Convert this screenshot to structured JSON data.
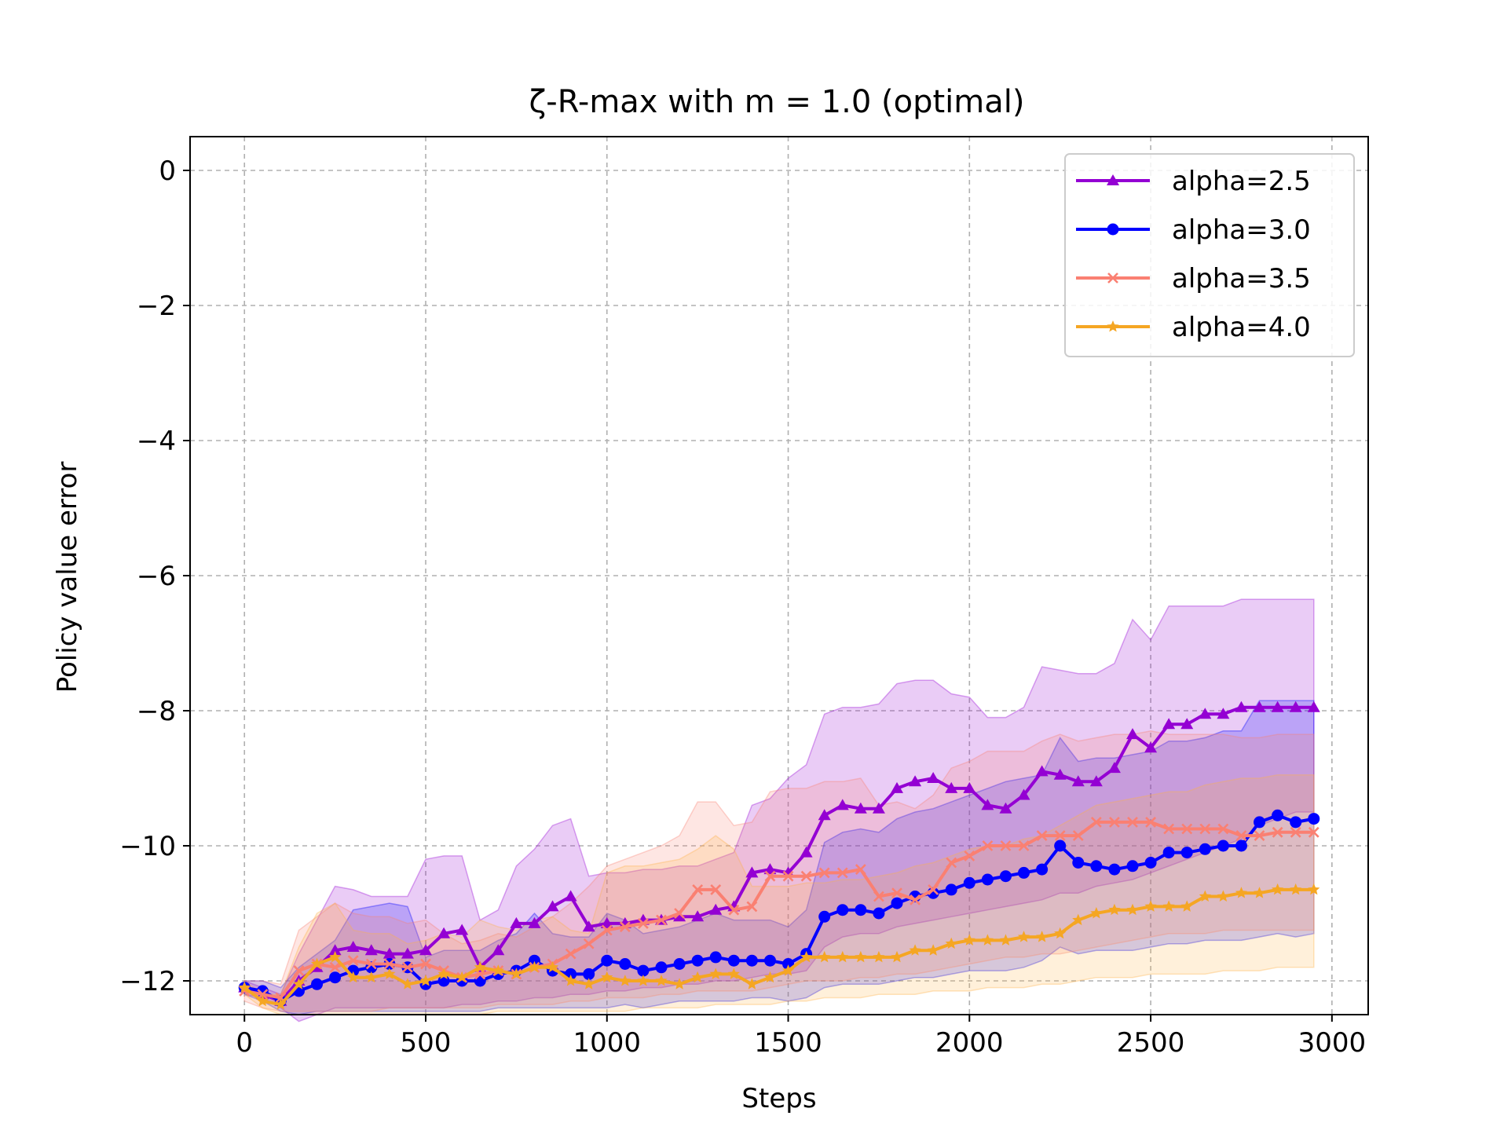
{
  "chart_data": {
    "type": "line",
    "title": "ζ-R-max with m = 1.0 (optimal)",
    "xlabel": "Steps",
    "ylabel": "Policy value error",
    "xlim": [
      -150,
      3100
    ],
    "ylim": [
      -12.5,
      0.5
    ],
    "xticks": [
      0,
      500,
      1000,
      1500,
      2000,
      2500,
      3000
    ],
    "xtick_labels": [
      "0",
      "500",
      "1000",
      "1500",
      "2000",
      "2500",
      "3000"
    ],
    "yticks": [
      0,
      -2,
      -4,
      -6,
      -8,
      -10,
      -12
    ],
    "ytick_labels": [
      "0",
      "−2",
      "−4",
      "−6",
      "−8",
      "−10",
      "−12"
    ],
    "grid": true,
    "legend_position": "top-right",
    "x": [
      0,
      50,
      100,
      150,
      200,
      250,
      300,
      350,
      400,
      450,
      500,
      550,
      600,
      650,
      700,
      750,
      800,
      850,
      900,
      950,
      1000,
      1050,
      1100,
      1150,
      1200,
      1250,
      1300,
      1350,
      1400,
      1450,
      1500,
      1550,
      1600,
      1650,
      1700,
      1750,
      1800,
      1850,
      1900,
      1950,
      2000,
      2050,
      2100,
      2150,
      2200,
      2250,
      2300,
      2350,
      2400,
      2450,
      2500,
      2550,
      2600,
      2650,
      2700,
      2750,
      2800,
      2850,
      2900,
      2950
    ],
    "series": [
      {
        "name": "alpha=2.5",
        "color": "#9400D3",
        "fill_color": "#9400D3",
        "marker": "triangle",
        "values": [
          -12.1,
          -12.2,
          -12.3,
          -12.0,
          -11.8,
          -11.55,
          -11.5,
          -11.55,
          -11.6,
          -11.6,
          -11.55,
          -11.3,
          -11.25,
          -11.8,
          -11.55,
          -11.15,
          -11.15,
          -10.9,
          -10.75,
          -11.2,
          -11.15,
          -11.15,
          -11.1,
          -11.1,
          -11.05,
          -11.05,
          -10.95,
          -10.9,
          -10.4,
          -10.35,
          -10.4,
          -10.1,
          -9.55,
          -9.4,
          -9.45,
          -9.45,
          -9.15,
          -9.05,
          -9.0,
          -9.15,
          -9.15,
          -9.4,
          -9.45,
          -9.25,
          -8.9,
          -8.95,
          -9.05,
          -9.05,
          -8.85,
          -8.35,
          -8.55,
          -8.2,
          -8.2,
          -8.05,
          -8.05,
          -7.95,
          -7.95,
          -7.95,
          -7.95,
          -7.95
        ],
        "lower": [
          -12.2,
          -12.25,
          -12.4,
          -12.6,
          -12.5,
          -12.4,
          -12.4,
          -12.4,
          -12.4,
          -12.4,
          -12.4,
          -12.4,
          -12.35,
          -12.35,
          -12.3,
          -12.3,
          -12.25,
          -12.25,
          -12.2,
          -12.2,
          -12.15,
          -12.15,
          -12.1,
          -12.1,
          -12.05,
          -12.05,
          -12.0,
          -12.0,
          -11.95,
          -11.9,
          -11.9,
          -11.85,
          -11.5,
          -11.35,
          -11.3,
          -11.3,
          -11.2,
          -11.15,
          -11.1,
          -11.05,
          -11.0,
          -10.95,
          -10.9,
          -10.85,
          -10.8,
          -10.7,
          -10.7,
          -10.6,
          -10.55,
          -10.5,
          -10.4,
          -10.3,
          -10.2,
          -10.1,
          -10.0,
          -9.9,
          -9.7,
          -9.6,
          -9.5,
          -9.5
        ],
        "upper": [
          -12.0,
          -12.1,
          -12.2,
          -11.6,
          -11.1,
          -10.6,
          -10.65,
          -10.75,
          -10.75,
          -10.75,
          -10.2,
          -10.15,
          -10.15,
          -11.1,
          -10.95,
          -10.3,
          -10.05,
          -9.7,
          -9.6,
          -10.45,
          -10.4,
          -10.4,
          -10.35,
          -10.35,
          -10.3,
          -10.3,
          -10.2,
          -10.1,
          -9.4,
          -9.3,
          -9.0,
          -8.8,
          -8.05,
          -7.95,
          -7.95,
          -7.9,
          -7.6,
          -7.55,
          -7.55,
          -7.75,
          -7.8,
          -8.1,
          -8.1,
          -7.95,
          -7.35,
          -7.4,
          -7.45,
          -7.45,
          -7.3,
          -6.65,
          -6.95,
          -6.45,
          -6.45,
          -6.45,
          -6.45,
          -6.35,
          -6.35,
          -6.35,
          -6.35,
          -6.35
        ]
      },
      {
        "name": "alpha=3.0",
        "color": "#0000FF",
        "fill_color": "#0000FF",
        "marker": "circle",
        "values": [
          -12.1,
          -12.15,
          -12.3,
          -12.15,
          -12.05,
          -11.95,
          -11.85,
          -11.8,
          -11.75,
          -11.8,
          -12.05,
          -12.0,
          -12.0,
          -12.0,
          -11.9,
          -11.85,
          -11.7,
          -11.85,
          -11.9,
          -11.9,
          -11.7,
          -11.75,
          -11.85,
          -11.8,
          -11.75,
          -11.7,
          -11.65,
          -11.7,
          -11.7,
          -11.7,
          -11.75,
          -11.6,
          -11.05,
          -10.95,
          -10.95,
          -11.0,
          -10.85,
          -10.75,
          -10.7,
          -10.65,
          -10.55,
          -10.5,
          -10.45,
          -10.4,
          -10.35,
          -10.0,
          -10.25,
          -10.3,
          -10.35,
          -10.3,
          -10.25,
          -10.1,
          -10.1,
          -10.05,
          -10.0,
          -10.0,
          -9.65,
          -9.55,
          -9.65,
          -9.6
        ],
        "lower": [
          -12.2,
          -12.3,
          -12.45,
          -12.5,
          -12.45,
          -12.45,
          -12.45,
          -12.45,
          -12.45,
          -12.45,
          -12.45,
          -12.45,
          -12.45,
          -12.45,
          -12.4,
          -12.4,
          -12.4,
          -12.4,
          -12.4,
          -12.4,
          -12.4,
          -12.35,
          -12.4,
          -12.35,
          -12.3,
          -12.3,
          -12.3,
          -12.3,
          -12.25,
          -12.25,
          -12.3,
          -12.25,
          -12.1,
          -12.05,
          -12.05,
          -12.05,
          -12.0,
          -11.95,
          -11.95,
          -11.9,
          -11.85,
          -11.85,
          -11.85,
          -11.8,
          -11.7,
          -11.5,
          -11.6,
          -11.55,
          -11.55,
          -11.55,
          -11.5,
          -11.45,
          -11.45,
          -11.4,
          -11.4,
          -11.4,
          -11.35,
          -11.3,
          -11.35,
          -11.3
        ],
        "upper": [
          -12.0,
          -12.0,
          -12.1,
          -11.8,
          -11.6,
          -11.4,
          -10.95,
          -10.9,
          -10.85,
          -10.9,
          -11.65,
          -11.55,
          -11.55,
          -11.55,
          -11.4,
          -11.3,
          -11.0,
          -11.3,
          -11.35,
          -11.35,
          -11.0,
          -11.1,
          -11.3,
          -11.25,
          -11.2,
          -11.1,
          -11.0,
          -11.1,
          -11.1,
          -11.1,
          -11.2,
          -10.95,
          -9.95,
          -9.8,
          -9.75,
          -9.8,
          -9.6,
          -9.5,
          -9.45,
          -9.35,
          -9.25,
          -9.15,
          -9.05,
          -9.0,
          -8.95,
          -8.4,
          -8.75,
          -8.7,
          -8.7,
          -8.65,
          -8.6,
          -8.45,
          -8.45,
          -8.4,
          -8.3,
          -8.3,
          -7.85,
          -7.85,
          -7.85,
          -7.85
        ]
      },
      {
        "name": "alpha=3.5",
        "color": "#FA8072",
        "fill_color": "#FA8072",
        "marker": "x",
        "values": [
          -12.15,
          -12.2,
          -12.25,
          -11.85,
          -11.75,
          -11.8,
          -11.7,
          -11.75,
          -11.75,
          -11.8,
          -11.75,
          -11.85,
          -11.95,
          -11.9,
          -11.85,
          -11.9,
          -11.8,
          -11.75,
          -11.6,
          -11.45,
          -11.25,
          -11.2,
          -11.15,
          -11.1,
          -11.0,
          -10.65,
          -10.65,
          -10.95,
          -10.9,
          -10.45,
          -10.45,
          -10.45,
          -10.4,
          -10.4,
          -10.35,
          -10.75,
          -10.7,
          -10.8,
          -10.65,
          -10.25,
          -10.15,
          -10.0,
          -10.0,
          -10.0,
          -9.85,
          -9.85,
          -9.85,
          -9.65,
          -9.65,
          -9.65,
          -9.65,
          -9.75,
          -9.75,
          -9.75,
          -9.75,
          -9.85,
          -9.85,
          -9.8,
          -9.8,
          -9.8
        ],
        "lower": [
          -12.3,
          -12.4,
          -12.45,
          -12.45,
          -12.45,
          -12.45,
          -12.45,
          -12.45,
          -12.4,
          -12.4,
          -12.4,
          -12.4,
          -12.4,
          -12.4,
          -12.35,
          -12.35,
          -12.35,
          -12.35,
          -12.3,
          -12.3,
          -12.25,
          -12.25,
          -12.25,
          -12.2,
          -12.2,
          -12.15,
          -12.15,
          -12.15,
          -12.15,
          -12.1,
          -12.05,
          -12.0,
          -12.0,
          -12.0,
          -11.95,
          -11.95,
          -11.9,
          -11.9,
          -11.85,
          -11.8,
          -11.75,
          -11.7,
          -11.65,
          -11.65,
          -11.6,
          -11.6,
          -11.55,
          -11.5,
          -11.45,
          -11.4,
          -11.35,
          -11.3,
          -11.3,
          -11.3,
          -11.25,
          -11.25,
          -11.25,
          -11.25,
          -11.25,
          -11.25
        ],
        "upper": [
          -12.0,
          -12.0,
          -12.05,
          -11.25,
          -11.05,
          -10.85,
          -11.0,
          -11.05,
          -11.05,
          -11.15,
          -11.1,
          -11.3,
          -11.45,
          -11.4,
          -11.3,
          -11.35,
          -11.2,
          -11.05,
          -10.85,
          -10.6,
          -10.3,
          -10.2,
          -10.1,
          -10.0,
          -9.85,
          -9.35,
          -9.35,
          -9.7,
          -9.65,
          -9.2,
          -9.15,
          -9.15,
          -9.05,
          -9.05,
          -9.0,
          -9.4,
          -9.35,
          -9.45,
          -9.25,
          -8.85,
          -8.75,
          -8.6,
          -8.6,
          -8.6,
          -8.45,
          -8.35,
          -8.45,
          -8.4,
          -8.35,
          -8.35,
          -8.3,
          -8.35,
          -8.35,
          -8.35,
          -8.35,
          -8.4,
          -8.4,
          -8.35,
          -8.35,
          -8.35
        ]
      },
      {
        "name": "alpha=4.0",
        "color": "#F5A623",
        "fill_color": "#FFB347",
        "marker": "star",
        "values": [
          -12.1,
          -12.3,
          -12.35,
          -12.05,
          -11.75,
          -11.65,
          -11.95,
          -11.95,
          -11.9,
          -12.05,
          -12.0,
          -11.9,
          -11.95,
          -11.8,
          -11.85,
          -11.9,
          -11.8,
          -11.8,
          -12.0,
          -12.05,
          -11.95,
          -12.0,
          -12.0,
          -12.0,
          -12.05,
          -11.95,
          -11.9,
          -11.9,
          -12.05,
          -11.95,
          -11.85,
          -11.65,
          -11.65,
          -11.65,
          -11.65,
          -11.65,
          -11.65,
          -11.55,
          -11.55,
          -11.45,
          -11.4,
          -11.4,
          -11.4,
          -11.35,
          -11.35,
          -11.3,
          -11.1,
          -11.0,
          -10.95,
          -10.95,
          -10.9,
          -10.9,
          -10.9,
          -10.75,
          -10.75,
          -10.7,
          -10.7,
          -10.65,
          -10.65,
          -10.65
        ],
        "lower": [
          -12.2,
          -12.4,
          -12.5,
          -12.5,
          -12.5,
          -12.5,
          -12.5,
          -12.5,
          -12.5,
          -12.5,
          -12.5,
          -12.5,
          -12.5,
          -12.5,
          -12.45,
          -12.45,
          -12.45,
          -12.45,
          -12.45,
          -12.45,
          -12.45,
          -12.45,
          -12.4,
          -12.4,
          -12.4,
          -12.4,
          -12.35,
          -12.35,
          -12.35,
          -12.35,
          -12.3,
          -12.3,
          -12.25,
          -12.25,
          -12.25,
          -12.2,
          -12.2,
          -12.2,
          -12.15,
          -12.15,
          -12.15,
          -12.1,
          -12.1,
          -12.1,
          -12.05,
          -12.05,
          -12.0,
          -11.95,
          -11.95,
          -11.95,
          -11.9,
          -11.9,
          -11.9,
          -11.9,
          -11.85,
          -11.85,
          -11.85,
          -11.8,
          -11.8,
          -11.8
        ],
        "upper": [
          -12.0,
          -12.2,
          -12.2,
          -11.5,
          -11.0,
          -10.85,
          -11.25,
          -11.3,
          -11.3,
          -11.45,
          -11.4,
          -11.3,
          -11.35,
          -11.1,
          -11.2,
          -11.25,
          -11.1,
          -11.05,
          -11.25,
          -11.3,
          -10.4,
          -10.3,
          -10.3,
          -10.25,
          -10.2,
          -10.05,
          -9.85,
          -10.05,
          -10.6,
          -10.6,
          -10.6,
          -10.55,
          -10.55,
          -10.5,
          -10.5,
          -10.45,
          -10.4,
          -10.3,
          -10.25,
          -10.15,
          -10.05,
          -10.0,
          -10.0,
          -9.9,
          -9.85,
          -9.7,
          -9.55,
          -9.4,
          -9.35,
          -9.3,
          -9.25,
          -9.2,
          -9.2,
          -9.1,
          -9.05,
          -9.0,
          -9.0,
          -8.95,
          -8.95,
          -8.95
        ]
      }
    ]
  }
}
